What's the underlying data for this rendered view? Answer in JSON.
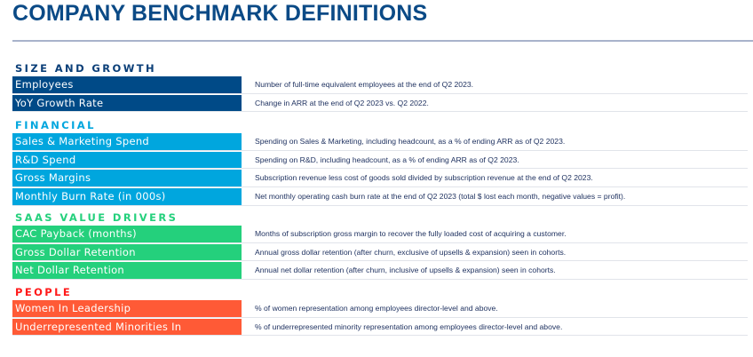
{
  "title": "COMPANY BENCHMARK DEFINITIONS",
  "colors": {
    "title": "#0b4a86",
    "size": "#004a87",
    "financial": "#00a6de",
    "saas": "#24d07c",
    "people": "#ff5a36",
    "people_heading": "#ff1a1a",
    "saas_heading": "#24d07c",
    "financial_heading": "#00a6de",
    "size_heading": "#0b3f78"
  },
  "sections": [
    {
      "heading": "SIZE AND GROWTH",
      "rows": [
        {
          "label": "Employees",
          "desc": "Number of full-time equivalent employees at the end of Q2 2023."
        },
        {
          "label": "YoY Growth Rate",
          "desc": "Change in ARR at the end of Q2 2023 vs. Q2 2022."
        }
      ]
    },
    {
      "heading": "FINANCIAL",
      "rows": [
        {
          "label": "Sales & Marketing Spend",
          "desc": "Spending on Sales & Marketing, including headcount, as a % of ending ARR as of Q2 2023."
        },
        {
          "label": "R&D Spend",
          "desc": "Spending on R&D, including headcount, as a % of ending ARR as of Q2 2023."
        },
        {
          "label": "Gross Margins",
          "desc": "Subscription revenue less cost of goods sold divided by subscription revenue at the end of Q2 2023."
        },
        {
          "label": "Monthly Burn Rate (in 000s)",
          "desc": "Net monthly operating cash burn rate at the end of Q2 2023 (total $ lost each month, negative values = profit)."
        }
      ]
    },
    {
      "heading": "SAAS VALUE DRIVERS",
      "rows": [
        {
          "label": "CAC Payback (months)",
          "desc": "Months of subscription gross margin to recover the fully loaded cost of acquiring a customer."
        },
        {
          "label": "Gross Dollar Retention",
          "desc": "Annual gross dollar retention (after churn, exclusive of upsells & expansion) seen in cohorts."
        },
        {
          "label": "Net Dollar Retention",
          "desc": "Annual net dollar retention (after churn, inclusive of upsells & expansion) seen in cohorts."
        }
      ]
    },
    {
      "heading": "PEOPLE",
      "rows": [
        {
          "label": "Women In Leadership",
          "desc": "% of women representation among employees director-level and above."
        },
        {
          "label": "Underrepresented Minorities In Leadership",
          "desc": "% of underrepresented minority representation among employees director-level and above."
        }
      ]
    }
  ]
}
